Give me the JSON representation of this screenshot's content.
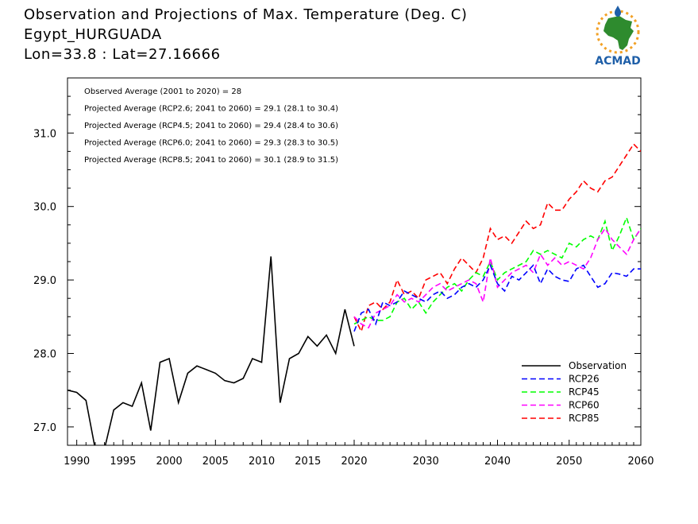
{
  "header": {
    "title_line1": "Observation and Projections of Max. Temperature (Deg. C)",
    "title_line2": "Egypt_HURGUADA",
    "title_line3": "Lon=33.8 : Lat=27.16666"
  },
  "logo": {
    "text": "ACMAD",
    "icon": "africa-map-logo"
  },
  "colors": {
    "observation": "#000000",
    "rcp26": "#0000ff",
    "rcp45": "#00ff00",
    "rcp60": "#ff00ff",
    "rcp85": "#ff0000",
    "logo_green": "#2e8b2e",
    "logo_blue": "#1f5fa8",
    "logo_orange": "#f2a126"
  },
  "annotations": [
    "Observed Average (2001 to 2020) = 28",
    "Projected Average (RCP2.6; 2041 to 2060) = 29.1 (28.1 to 30.4)",
    "Projected Average (RCP4.5; 2041 to 2060) = 29.4 (28.4 to 30.6)",
    "Projected Average (RCP6.0; 2041 to 2060) = 29.3 (28.3 to 30.5)",
    "Projected Average (RCP8.5; 2041 to 2060) = 30.1 (28.9 to 31.5)"
  ],
  "chart_data": {
    "type": "line",
    "xlim": [
      1989,
      2060
    ],
    "ylim": [
      26.75,
      31.75
    ],
    "x_ticks": [
      1990,
      1995,
      2000,
      2005,
      2010,
      2015,
      2020,
      2030,
      2040,
      2050,
      2060
    ],
    "x_tick_labels": [
      "1990",
      "1995",
      "2000",
      "2005",
      "2010",
      "2015",
      "2020",
      "2030",
      "2040",
      "2050",
      "2060"
    ],
    "y_ticks": [
      27.0,
      28.0,
      29.0,
      30.0,
      31.0
    ],
    "y_tick_labels": [
      "27.0",
      "28.0",
      "29.0",
      "30.0",
      "31.0"
    ],
    "legend_position": "bottom-right",
    "series": [
      {
        "name": "Observation",
        "style": "solid",
        "x": [
          1989,
          1990,
          1991,
          1992,
          1993,
          1994,
          1995,
          1996,
          1997,
          1998,
          1999,
          2000,
          2001,
          2002,
          2003,
          2004,
          2005,
          2006,
          2007,
          2008,
          2009,
          2010,
          2011,
          2012,
          2013,
          2014,
          2015,
          2016,
          2017,
          2018,
          2019,
          2020
        ],
        "y": [
          27.5,
          27.47,
          27.36,
          26.7,
          26.7,
          27.23,
          27.33,
          27.28,
          27.6,
          26.95,
          27.88,
          27.93,
          27.33,
          27.73,
          27.83,
          27.78,
          27.73,
          27.63,
          27.6,
          27.66,
          27.93,
          27.88,
          29.32,
          27.33,
          27.93,
          28.0,
          28.23,
          28.1,
          28.25,
          28.0,
          28.6,
          28.1
        ]
      },
      {
        "name": "RCP26",
        "style": "dashed",
        "x": [
          2020,
          2021,
          2022,
          2023,
          2024,
          2025,
          2026,
          2027,
          2028,
          2029,
          2030,
          2031,
          2032,
          2033,
          2034,
          2035,
          2036,
          2037,
          2038,
          2039,
          2040,
          2041,
          2042,
          2043,
          2044,
          2045,
          2046,
          2047,
          2048,
          2049,
          2050,
          2051,
          2052,
          2053,
          2054,
          2055,
          2056,
          2057,
          2058,
          2059,
          2060
        ],
        "y": [
          28.3,
          28.55,
          28.6,
          28.4,
          28.7,
          28.65,
          28.7,
          28.85,
          28.8,
          28.75,
          28.7,
          28.8,
          28.85,
          28.75,
          28.8,
          28.9,
          28.95,
          28.9,
          29.0,
          29.2,
          28.95,
          28.85,
          29.05,
          29.0,
          29.1,
          29.2,
          28.95,
          29.15,
          29.05,
          29.0,
          28.98,
          29.15,
          29.2,
          29.05,
          28.9,
          28.95,
          29.1,
          29.08,
          29.05,
          29.15,
          29.15
        ]
      },
      {
        "name": "RCP45",
        "style": "dashed",
        "x": [
          2020,
          2021,
          2022,
          2023,
          2024,
          2025,
          2026,
          2027,
          2028,
          2029,
          2030,
          2031,
          2032,
          2033,
          2034,
          2035,
          2036,
          2037,
          2038,
          2039,
          2040,
          2041,
          2042,
          2043,
          2044,
          2045,
          2046,
          2047,
          2048,
          2049,
          2050,
          2051,
          2052,
          2053,
          2054,
          2055,
          2056,
          2057,
          2058,
          2059,
          2060
        ],
        "y": [
          28.4,
          28.45,
          28.5,
          28.45,
          28.45,
          28.5,
          28.7,
          28.75,
          28.6,
          28.7,
          28.55,
          28.7,
          28.8,
          28.9,
          28.95,
          28.85,
          29.0,
          29.1,
          29.05,
          29.25,
          29.0,
          29.1,
          29.15,
          29.2,
          29.25,
          29.4,
          29.35,
          29.4,
          29.35,
          29.3,
          29.5,
          29.45,
          29.55,
          29.6,
          29.55,
          29.8,
          29.4,
          29.6,
          29.85,
          29.55,
          29.7
        ]
      },
      {
        "name": "RCP60",
        "style": "dashed",
        "x": [
          2020,
          2021,
          2022,
          2023,
          2024,
          2025,
          2026,
          2027,
          2028,
          2029,
          2030,
          2031,
          2032,
          2033,
          2034,
          2035,
          2036,
          2037,
          2038,
          2039,
          2040,
          2041,
          2042,
          2043,
          2044,
          2045,
          2046,
          2047,
          2048,
          2049,
          2050,
          2051,
          2052,
          2053,
          2054,
          2055,
          2056,
          2057,
          2058,
          2059,
          2060
        ],
        "y": [
          28.5,
          28.4,
          28.35,
          28.55,
          28.6,
          28.65,
          28.8,
          28.7,
          28.75,
          28.7,
          28.8,
          28.9,
          28.95,
          28.85,
          28.9,
          28.95,
          29.0,
          28.95,
          28.7,
          29.3,
          28.9,
          29.0,
          29.1,
          29.15,
          29.2,
          29.1,
          29.35,
          29.2,
          29.3,
          29.2,
          29.25,
          29.2,
          29.15,
          29.3,
          29.55,
          29.7,
          29.55,
          29.45,
          29.35,
          29.55,
          29.7
        ]
      },
      {
        "name": "RCP85",
        "style": "dashed",
        "x": [
          2020,
          2021,
          2022,
          2023,
          2024,
          2025,
          2026,
          2027,
          2028,
          2029,
          2030,
          2031,
          2032,
          2033,
          2034,
          2035,
          2036,
          2037,
          2038,
          2039,
          2040,
          2041,
          2042,
          2043,
          2044,
          2045,
          2046,
          2047,
          2048,
          2049,
          2050,
          2051,
          2052,
          2053,
          2054,
          2055,
          2056,
          2057,
          2058,
          2059,
          2060
        ],
        "y": [
          28.5,
          28.3,
          28.65,
          28.7,
          28.6,
          28.7,
          29.0,
          28.8,
          28.85,
          28.75,
          29.0,
          29.05,
          29.1,
          28.95,
          29.15,
          29.3,
          29.2,
          29.1,
          29.3,
          29.7,
          29.55,
          29.6,
          29.5,
          29.65,
          29.8,
          29.7,
          29.75,
          30.05,
          29.95,
          29.95,
          30.1,
          30.2,
          30.35,
          30.25,
          30.2,
          30.35,
          30.4,
          30.55,
          30.7,
          30.85,
          30.75
        ]
      }
    ]
  }
}
